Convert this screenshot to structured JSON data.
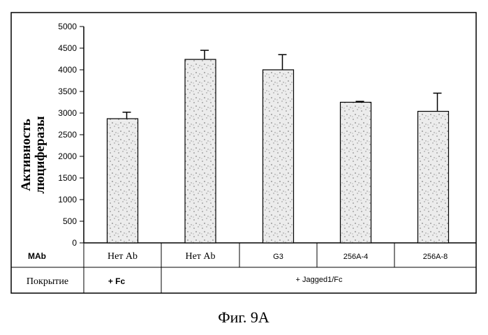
{
  "figure_caption": "Фиг. 9A",
  "table": {
    "row1_label": "MAb",
    "row2_label": "Покрытие",
    "coating_groups": [
      "+ Fc",
      "+ Jagged1/Fc"
    ]
  },
  "chart_data": {
    "type": "bar",
    "categories": [
      "Нет Ab",
      "Нет Ab",
      "G3",
      "256A-4",
      "256A-8"
    ],
    "values": [
      2870,
      4240,
      4000,
      3250,
      3040
    ],
    "errors": [
      150,
      210,
      350,
      20,
      420
    ],
    "ylabel_lines": [
      "Активность",
      "люциферазы"
    ],
    "yticks": [
      "0",
      "500",
      "1000",
      "1500",
      "2000",
      "2500",
      "3000",
      "3500",
      "4000",
      "4500",
      "5000"
    ],
    "ylim": [
      0,
      5000
    ],
    "grid": false,
    "bar_color": "#e4e4e4"
  }
}
